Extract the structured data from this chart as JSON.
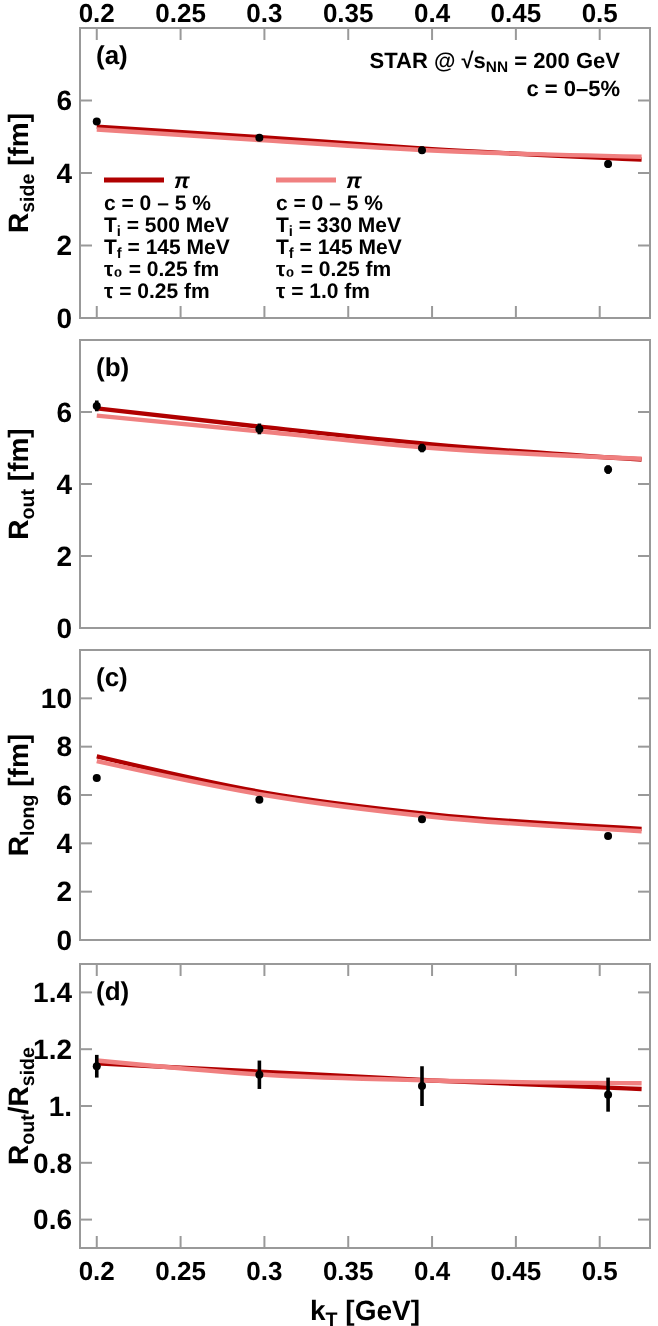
{
  "chart_data": [
    {
      "type": "line",
      "xlim": [
        0.19,
        0.53
      ],
      "ylim": [
        0,
        8
      ],
      "yticks": [
        0,
        2,
        4,
        6
      ],
      "x2lim": [
        0.19,
        0.53
      ],
      "x2ticks": [
        0.2,
        0.25,
        0.3,
        0.35,
        0.4,
        0.45,
        0.5
      ],
      "ylabel": "R$_{side}$ [fm]",
      "tick_labels": "y",
      "legend": "bottom left",
      "line_style": "solid",
      "annotations": [
        "(a)",
        "STAR @ √s$_{NN}$ = 200 GeV",
        "c = 0–5%",
        "c = 0 – 5 %",
        "T$_{i}$ = 500 MeV",
        "T$_{f}$ = 145 MeV",
        "τ₀ = 0.25 fm",
        "τ = 0.25 fm",
        "c = 0 – 5 %",
        "T$_{i}$ = 330 MeV",
        "T$_{f}$ = 145 MeV",
        "τ₀ = 0.25 fm",
        "τ = 1.0 fm"
      ],
      "series": [
        {
          "name": "π",
          "type": "line",
          "color": "#b00000",
          "x": [
            0.2,
            0.3,
            0.4,
            0.525
          ],
          "values": [
            5.28,
            4.98,
            4.66,
            4.37
          ]
        },
        {
          "name": "π",
          "type": "line",
          "color": "#f08080",
          "x": [
            0.2,
            0.3,
            0.4,
            0.525
          ],
          "values": [
            5.2,
            4.9,
            4.62,
            4.45
          ]
        },
        {
          "type": "scatter",
          "marker": "circle",
          "color": "#000000",
          "x": [
            0.2,
            0.297,
            0.394,
            0.505
          ],
          "values": [
            5.42,
            4.97,
            4.63,
            4.25
          ],
          "errors": [
            0.05,
            0.07,
            0.1,
            0.1
          ]
        }
      ]
    },
    {
      "type": "line",
      "xlim": [
        0.19,
        0.53
      ],
      "ylim": [
        0,
        8
      ],
      "yticks": [
        0,
        2,
        4,
        6
      ],
      "ylabel": "R$_{out}$ [fm]",
      "tick_labels": "y",
      "line_style": "solid",
      "annotations": [
        "(b)"
      ],
      "series": [
        {
          "type": "line",
          "color": "#b00000",
          "x": [
            0.2,
            0.3,
            0.4,
            0.525
          ],
          "values": [
            6.1,
            5.58,
            5.1,
            4.68
          ]
        },
        {
          "type": "line",
          "color": "#f08080",
          "x": [
            0.2,
            0.3,
            0.4,
            0.525
          ],
          "values": [
            5.9,
            5.45,
            5.0,
            4.7
          ]
        },
        {
          "type": "scatter",
          "marker": "circle",
          "color": "#000000",
          "x": [
            0.2,
            0.297,
            0.394,
            0.505
          ],
          "values": [
            6.17,
            5.53,
            5.0,
            4.4
          ],
          "errors": [
            0.15,
            0.15,
            0.12,
            0.12
          ]
        }
      ]
    },
    {
      "type": "line",
      "xlim": [
        0.19,
        0.53
      ],
      "ylim": [
        0,
        12
      ],
      "yticks": [
        0,
        2,
        4,
        6,
        8,
        10
      ],
      "ylabel": "R$_{long}$ [fm]",
      "tick_labels": "y",
      "line_style": "solid",
      "annotations": [
        "(c)"
      ],
      "series": [
        {
          "type": "line",
          "color": "#b00000",
          "x": [
            0.2,
            0.3,
            0.4,
            0.525
          ],
          "values": [
            7.6,
            6.1,
            5.2,
            4.6
          ]
        },
        {
          "type": "line",
          "color": "#f08080",
          "x": [
            0.2,
            0.3,
            0.4,
            0.525
          ],
          "values": [
            7.4,
            6.0,
            5.1,
            4.5
          ]
        },
        {
          "type": "scatter",
          "marker": "circle",
          "color": "#000000",
          "x": [
            0.2,
            0.297,
            0.394,
            0.505
          ],
          "values": [
            6.7,
            5.8,
            5.0,
            4.3
          ],
          "errors": [
            0.05,
            0.05,
            0.1,
            0.1
          ]
        }
      ]
    },
    {
      "type": "line",
      "xlim": [
        0.19,
        0.53
      ],
      "ylim": [
        0.5,
        1.5
      ],
      "xticks": [
        0.2,
        0.25,
        0.3,
        0.35,
        0.4,
        0.45,
        0.5
      ],
      "yticks": [
        0.6,
        0.8,
        {
          "value": 1,
          "label": "1."
        },
        1.2,
        1.4
      ],
      "xlabel": "k$_{T}$ [GeV]",
      "ylabel": "R$_{out}$/R$_{side}$",
      "line_style": "solid",
      "annotations": [
        "(d)"
      ],
      "series": [
        {
          "type": "line",
          "color": "#b00000",
          "x": [
            0.2,
            0.3,
            0.4,
            0.525
          ],
          "values": [
            1.15,
            1.12,
            1.09,
            1.06
          ]
        },
        {
          "type": "line",
          "color": "#f08080",
          "x": [
            0.2,
            0.3,
            0.4,
            0.525
          ],
          "values": [
            1.16,
            1.11,
            1.09,
            1.08
          ]
        },
        {
          "type": "scatter",
          "marker": "circle",
          "color": "#000000",
          "x": [
            0.2,
            0.297,
            0.394,
            0.505
          ],
          "values": [
            1.14,
            1.11,
            1.07,
            1.04
          ],
          "errors": [
            0.04,
            0.05,
            0.07,
            0.06
          ]
        }
      ]
    }
  ]
}
